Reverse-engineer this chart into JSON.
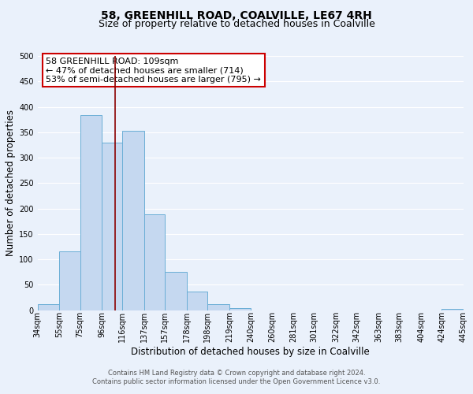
{
  "title": "58, GREENHILL ROAD, COALVILLE, LE67 4RH",
  "subtitle": "Size of property relative to detached houses in Coalville",
  "xlabel": "Distribution of detached houses by size in Coalville",
  "ylabel": "Number of detached properties",
  "bin_edges": [
    34,
    55,
    75,
    96,
    116,
    137,
    157,
    178,
    198,
    219,
    240,
    260,
    281,
    301,
    322,
    342,
    363,
    383,
    404,
    424,
    445
  ],
  "bar_heights": [
    12,
    115,
    383,
    330,
    352,
    188,
    75,
    37,
    12,
    5,
    0,
    0,
    0,
    0,
    0,
    0,
    0,
    0,
    0,
    3
  ],
  "bar_color": "#c5d8f0",
  "bar_edgecolor": "#6aaed6",
  "vline_x": 109,
  "vline_color": "#8b0000",
  "ylim": [
    0,
    500
  ],
  "annotation_box_text": "58 GREENHILL ROAD: 109sqm\n← 47% of detached houses are smaller (714)\n53% of semi-detached houses are larger (795) →",
  "annotation_box_color": "#ffffff",
  "annotation_box_edgecolor": "#cc0000",
  "footnote1": "Contains HM Land Registry data © Crown copyright and database right 2024.",
  "footnote2": "Contains public sector information licensed under the Open Government Licence v3.0.",
  "tick_labels": [
    "34sqm",
    "55sqm",
    "75sqm",
    "96sqm",
    "116sqm",
    "137sqm",
    "157sqm",
    "178sqm",
    "198sqm",
    "219sqm",
    "240sqm",
    "260sqm",
    "281sqm",
    "301sqm",
    "322sqm",
    "342sqm",
    "363sqm",
    "383sqm",
    "404sqm",
    "424sqm",
    "445sqm"
  ],
  "background_color": "#eaf1fb",
  "grid_color": "#ffffff",
  "title_fontsize": 10,
  "subtitle_fontsize": 9,
  "axis_label_fontsize": 8.5,
  "tick_fontsize": 7,
  "annotation_fontsize": 8,
  "footnote_fontsize": 6
}
